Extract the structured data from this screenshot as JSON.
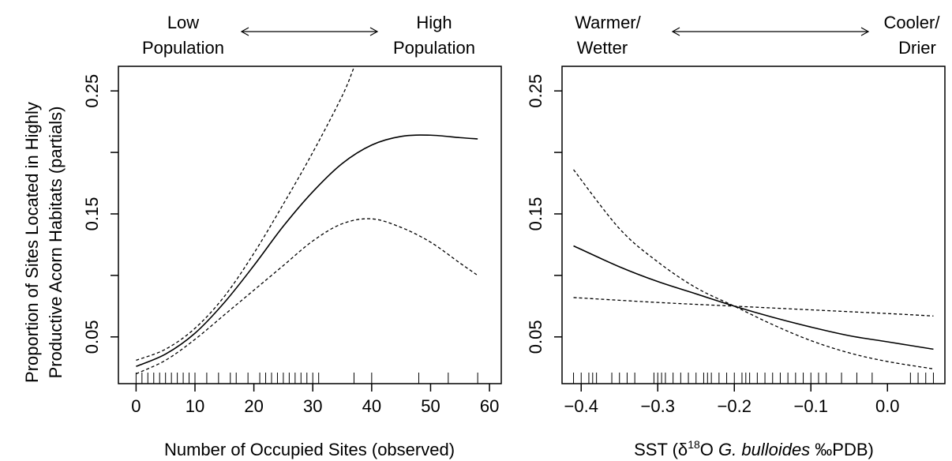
{
  "y_axis_label": {
    "line1": "Proportion of Sites Located in Highly",
    "line2": "Productive Acorn Habitats (partials)"
  },
  "chart_data": [
    {
      "type": "line",
      "xlabel": "Number of Occupied Sites (observed)",
      "ylabel": "Proportion of Sites Located in Highly Productive Acorn Habitats (partials)",
      "xlim": [
        -3,
        62
      ],
      "ylim": [
        0.012,
        0.27
      ],
      "x_ticks": [
        0,
        10,
        20,
        30,
        40,
        50,
        60
      ],
      "x_tick_labels": [
        "0",
        "10",
        "20",
        "30",
        "40",
        "50",
        "60"
      ],
      "y_ticks": [
        0.05,
        0.1,
        0.15,
        0.2,
        0.25
      ],
      "y_tick_labels": [
        "0.05",
        "",
        "0.15",
        "",
        "0.25"
      ],
      "top_left_label": [
        "Low",
        "Population"
      ],
      "top_right_label": [
        "High",
        "Population"
      ],
      "series": [
        {
          "style": "solid",
          "x": [
            0,
            5,
            10,
            15,
            20,
            25,
            30,
            35,
            40,
            45,
            50,
            55,
            58
          ],
          "y": [
            0.026,
            0.036,
            0.053,
            0.078,
            0.108,
            0.14,
            0.168,
            0.191,
            0.206,
            0.213,
            0.214,
            0.212,
            0.211
          ]
        },
        {
          "style": "dashed",
          "x": [
            0,
            5,
            10,
            15,
            20,
            25,
            30,
            35,
            36.9
          ],
          "y": [
            0.031,
            0.04,
            0.057,
            0.083,
            0.118,
            0.158,
            0.2,
            0.246,
            0.268
          ]
        },
        {
          "style": "dashed",
          "x": [
            0,
            5,
            10,
            15,
            20,
            25,
            30,
            35,
            40,
            45,
            50,
            55,
            58
          ],
          "y": [
            0.02,
            0.031,
            0.048,
            0.068,
            0.088,
            0.108,
            0.128,
            0.142,
            0.146,
            0.139,
            0.127,
            0.11,
            0.1
          ]
        }
      ],
      "rug": [
        0,
        1,
        2,
        3,
        4,
        5,
        6,
        7,
        8,
        9,
        10,
        12,
        14,
        16,
        17,
        19,
        21,
        22,
        23,
        24,
        25,
        26,
        27,
        28,
        29,
        30,
        31,
        37,
        40,
        48,
        53,
        58
      ]
    },
    {
      "type": "line",
      "xlabel": "SST (δ18O G. bulloides ‰PDB)",
      "ylabel": "",
      "xlim": [
        -0.425,
        0.075
      ],
      "ylim": [
        0.012,
        0.27
      ],
      "x_ticks": [
        -0.4,
        -0.3,
        -0.2,
        -0.1,
        0.0
      ],
      "x_tick_labels": [
        "−0.4",
        "−0.3",
        "−0.2",
        "−0.1",
        "0.0"
      ],
      "y_ticks": [
        0.05,
        0.1,
        0.15,
        0.2,
        0.25
      ],
      "y_tick_labels": [
        "0.05",
        "",
        "0.15",
        "",
        "0.25"
      ],
      "top_left_label": [
        "Warmer/",
        "Wetter"
      ],
      "top_right_label": [
        "Cooler/",
        "Drier"
      ],
      "series": [
        {
          "style": "solid",
          "x": [
            -0.41,
            -0.35,
            -0.3,
            -0.25,
            -0.2,
            -0.15,
            -0.1,
            -0.05,
            0.0,
            0.06
          ],
          "y": [
            0.124,
            0.107,
            0.095,
            0.085,
            0.075,
            0.066,
            0.058,
            0.051,
            0.046,
            0.04
          ]
        },
        {
          "style": "dashed",
          "x": [
            -0.41,
            -0.35,
            -0.3,
            -0.25,
            -0.2,
            -0.15,
            -0.1,
            -0.05,
            0.0,
            0.06
          ],
          "y": [
            0.186,
            0.138,
            0.111,
            0.09,
            0.075,
            0.06,
            0.047,
            0.037,
            0.03,
            0.024
          ]
        },
        {
          "style": "dashed",
          "x": [
            -0.41,
            -0.3,
            -0.2,
            -0.1,
            0.0,
            0.06
          ],
          "y": [
            0.082,
            0.078,
            0.075,
            0.072,
            0.069,
            0.067
          ]
        }
      ],
      "rug": [
        -0.41,
        -0.4,
        -0.39,
        -0.385,
        -0.38,
        -0.36,
        -0.35,
        -0.34,
        -0.33,
        -0.305,
        -0.3,
        -0.295,
        -0.29,
        -0.28,
        -0.27,
        -0.26,
        -0.25,
        -0.24,
        -0.235,
        -0.23,
        -0.22,
        -0.21,
        -0.2,
        -0.19,
        -0.185,
        -0.18,
        -0.17,
        -0.16,
        -0.15,
        -0.14,
        -0.13,
        -0.12,
        -0.11,
        -0.1,
        -0.09,
        -0.08,
        -0.06,
        -0.04,
        -0.02,
        0.03,
        0.04,
        0.05,
        0.06
      ]
    }
  ]
}
